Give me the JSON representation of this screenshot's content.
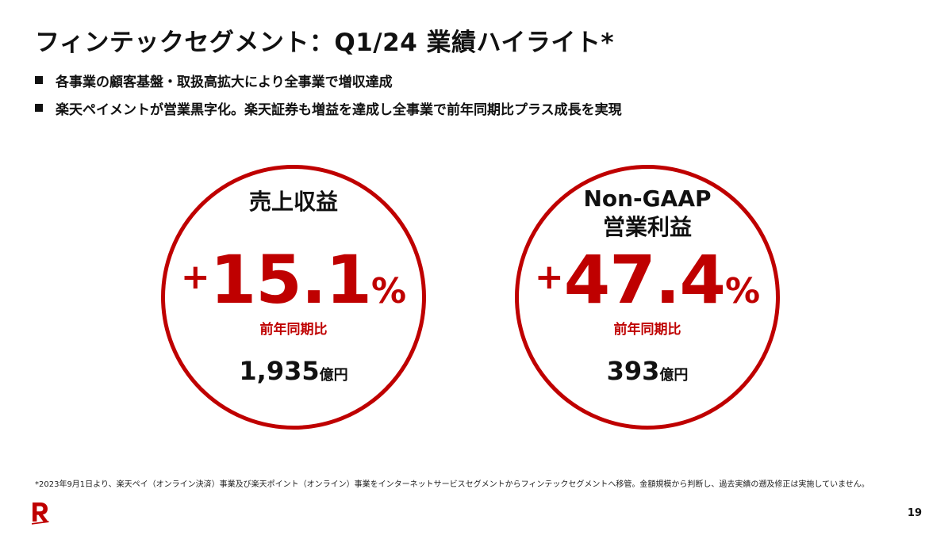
{
  "slide": {
    "title": "フィンテックセグメント：Q1/24 業績ハイライト*",
    "bullets": [
      "各事業の顧客基盤・取扱高拡大により全事業で増収達成",
      "楽天ペイメントが営業黒字化。楽天証券も増益を達成し全事業で前年同期比プラス成長を実現"
    ],
    "metrics": [
      {
        "label_lines": [
          "売上収益"
        ],
        "sign": "+",
        "growth": "15.1",
        "percent": "%",
        "yoy_label": "前年同期比",
        "amount": "1,935",
        "unit": "億円"
      },
      {
        "label_lines": [
          "Non-GAAP",
          "営業利益"
        ],
        "sign": "+",
        "growth": "47.4",
        "percent": "%",
        "yoy_label": "前年同期比",
        "amount": "393",
        "unit": "億円"
      }
    ],
    "footnote": "*2023年9月1日より、楽天ペイ（オンライン決済）事業及び楽天ポイント（オンライン）事業をインターネットサービスセグメントからフィンテックセグメントへ移管。金額規模から判断し、過去実績の遡及修正は実施していません。",
    "page_number": "19",
    "logo": {
      "icon": "rakuten-r-logo",
      "color": "#bf0000"
    },
    "accent_color": "#bf0000"
  }
}
